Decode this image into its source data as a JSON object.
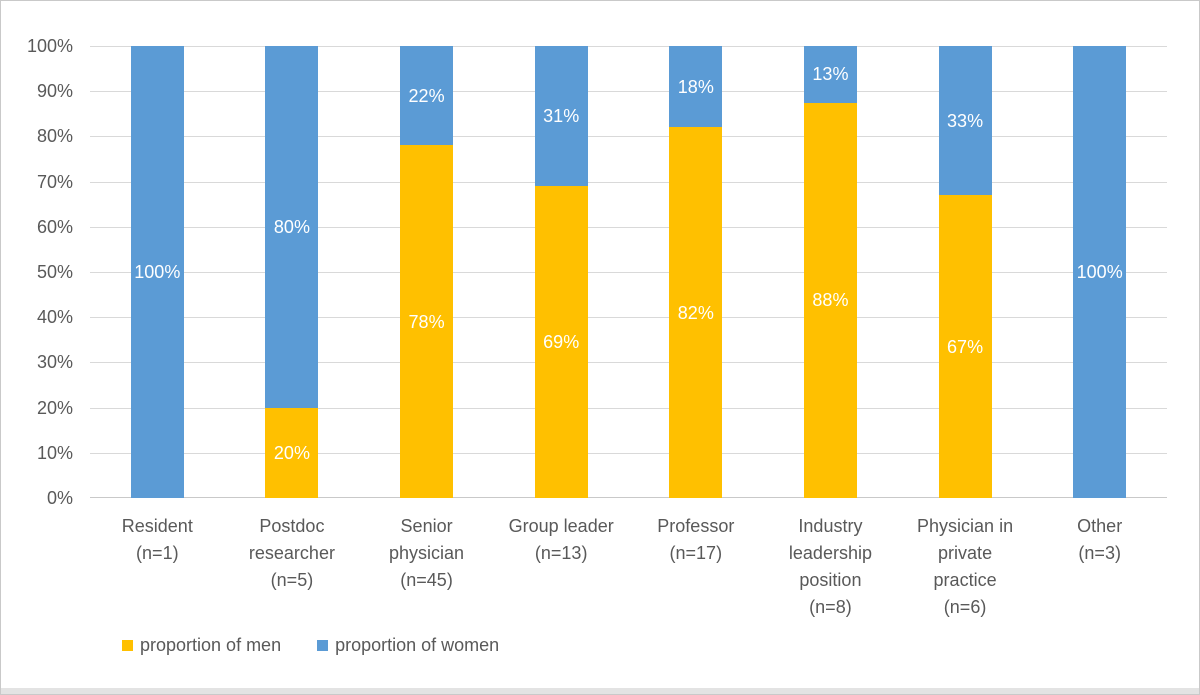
{
  "frame": {
    "background": "#ffffff",
    "border_color": "#c9c9c9",
    "bottom_band_color": "#e3e3e3"
  },
  "chart_data": {
    "type": "bar",
    "stacked": true,
    "title": "",
    "xlabel": "",
    "ylabel": "",
    "categories": [
      "Resident\n(n=1)",
      "Postdoc\nresearcher\n(n=5)",
      "Senior\nphysician\n(n=45)",
      "Group leader\n(n=13)",
      "Professor\n(n=17)",
      "Industry\nleadership\nposition\n(n=8)",
      "Physician in\nprivate\npractice\n(n=6)",
      "Other\n(n=3)"
    ],
    "series": [
      {
        "name": "proportion of men",
        "color": "#FFC000",
        "values": [
          0,
          20,
          78,
          69,
          82,
          87.5,
          67,
          0
        ],
        "labels": [
          "",
          "20%",
          "78%",
          "69%",
          "82%",
          "88%",
          "67%",
          ""
        ]
      },
      {
        "name": "proportion of women",
        "color": "#5B9BD5",
        "values": [
          100,
          80,
          22,
          31,
          18,
          12.5,
          33,
          100
        ],
        "labels": [
          "100%",
          "80%",
          "22%",
          "31%",
          "18%",
          "13%",
          "33%",
          "100%"
        ]
      }
    ],
    "y_axis": {
      "min": 0,
      "max": 100,
      "tick_step": 10,
      "ticks": [
        "0%",
        "10%",
        "20%",
        "30%",
        "40%",
        "50%",
        "60%",
        "70%",
        "80%",
        "90%",
        "100%"
      ],
      "grid": true
    },
    "legend": {
      "position": "bottom-left",
      "items": [
        {
          "label": "proportion of men",
          "color": "#FFC000"
        },
        {
          "label": "proportion of women",
          "color": "#5B9BD5"
        }
      ]
    },
    "styles": {
      "gridline_color": "#D9D9D9",
      "baseline_color": "#C9C9C9",
      "axis_text_color": "#595959",
      "bar_label_color": "#FFFFFF"
    }
  }
}
